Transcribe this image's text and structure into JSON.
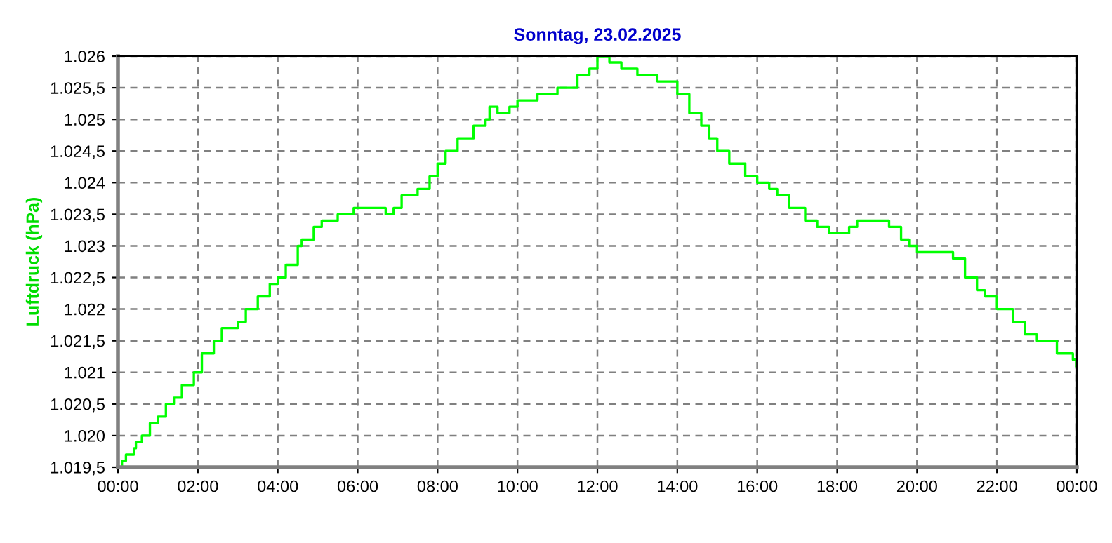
{
  "chart_data": {
    "type": "step",
    "title": "Sonntag, 23.02.2025",
    "ylabel": "Luftdruck (hPa)",
    "x": [
      0,
      0.1,
      0.2,
      0.4,
      0.45,
      0.6,
      0.8,
      1.0,
      1.2,
      1.4,
      1.6,
      1.9,
      2.1,
      2.4,
      2.6,
      3.0,
      3.2,
      3.5,
      3.8,
      4.0,
      4.2,
      4.5,
      4.6,
      4.9,
      5.1,
      5.5,
      5.9,
      6.5,
      6.7,
      6.9,
      7.1,
      7.5,
      7.8,
      8.0,
      8.2,
      8.5,
      8.9,
      9.2,
      9.3,
      9.5,
      9.8,
      10.0,
      10.5,
      11.0,
      11.5,
      11.8,
      12.0,
      12.3,
      12.6,
      13.0,
      13.5,
      14.0,
      14.3,
      14.6,
      14.8,
      15.0,
      15.3,
      15.7,
      16.0,
      16.3,
      16.5,
      16.8,
      17.2,
      17.5,
      17.8,
      18.0,
      18.3,
      18.5,
      19.0,
      19.3,
      19.6,
      19.8,
      20.0,
      20.5,
      20.9,
      21.0,
      21.2,
      21.5,
      21.7,
      22.0,
      22.4,
      22.7,
      23.0,
      23.5,
      23.9,
      24.0
    ],
    "series": [
      {
        "color": "#00ff00",
        "values": [
          1019.5,
          1019.6,
          1019.7,
          1019.8,
          1019.9,
          1020.0,
          1020.2,
          1020.3,
          1020.5,
          1020.6,
          1020.8,
          1021.0,
          1021.3,
          1021.5,
          1021.7,
          1021.8,
          1022.0,
          1022.2,
          1022.4,
          1022.5,
          1022.7,
          1023.0,
          1023.1,
          1023.3,
          1023.4,
          1023.5,
          1023.6,
          1023.6,
          1023.5,
          1023.6,
          1023.8,
          1023.9,
          1024.1,
          1024.3,
          1024.5,
          1024.7,
          1024.9,
          1025.0,
          1025.2,
          1025.1,
          1025.2,
          1025.3,
          1025.4,
          1025.5,
          1025.7,
          1025.8,
          1026.0,
          1025.9,
          1025.8,
          1025.7,
          1025.6,
          1025.4,
          1025.1,
          1024.9,
          1024.7,
          1024.5,
          1024.3,
          1024.1,
          1024.0,
          1023.9,
          1023.8,
          1023.6,
          1023.4,
          1023.3,
          1023.2,
          1023.2,
          1023.3,
          1023.4,
          1023.4,
          1023.3,
          1023.1,
          1023.0,
          1022.9,
          1022.9,
          1022.8,
          1022.8,
          1022.5,
          1022.3,
          1022.2,
          1022.0,
          1021.8,
          1021.6,
          1021.5,
          1021.3,
          1021.2,
          1021.1
        ]
      }
    ],
    "xlim": [
      0,
      24
    ],
    "xticks": [
      {
        "value": 0,
        "label": "00:00"
      },
      {
        "value": 2,
        "label": "02:00"
      },
      {
        "value": 4,
        "label": "04:00"
      },
      {
        "value": 6,
        "label": "06:00"
      },
      {
        "value": 8,
        "label": "08:00"
      },
      {
        "value": 10,
        "label": "10:00"
      },
      {
        "value": 12,
        "label": "12:00"
      },
      {
        "value": 14,
        "label": "14:00"
      },
      {
        "value": 16,
        "label": "16:00"
      },
      {
        "value": 18,
        "label": "18:00"
      },
      {
        "value": 20,
        "label": "20:00"
      },
      {
        "value": 22,
        "label": "22:00"
      },
      {
        "value": 24,
        "label": "00:00"
      }
    ],
    "ylim": [
      1019.5,
      1026
    ],
    "yticks": [
      {
        "value": 1019.5,
        "label": "1.019,5"
      },
      {
        "value": 1020,
        "label": "1.020"
      },
      {
        "value": 1020.5,
        "label": "1.020,5"
      },
      {
        "value": 1021,
        "label": "1.021"
      },
      {
        "value": 1021.5,
        "label": "1.021,5"
      },
      {
        "value": 1022,
        "label": "1.022"
      },
      {
        "value": 1022.5,
        "label": "1.022,5"
      },
      {
        "value": 1023,
        "label": "1.023"
      },
      {
        "value": 1023.5,
        "label": "1.023,5"
      },
      {
        "value": 1024,
        "label": "1.024"
      },
      {
        "value": 1024.5,
        "label": "1.024,5"
      },
      {
        "value": 1025,
        "label": "1.025"
      },
      {
        "value": 1025.5,
        "label": "1.025,5"
      },
      {
        "value": 1026,
        "label": "1.026"
      }
    ],
    "grid": true,
    "line_style": "solid"
  }
}
